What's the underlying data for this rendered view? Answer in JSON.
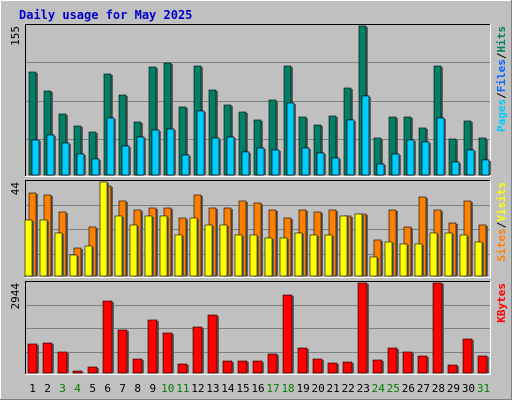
{
  "chart_data": {
    "type": "bar",
    "title": "Daily usage for May 2025",
    "categories": [
      "1",
      "2",
      "3",
      "4",
      "5",
      "6",
      "7",
      "8",
      "9",
      "10",
      "11",
      "12",
      "13",
      "14",
      "15",
      "16",
      "17",
      "18",
      "19",
      "20",
      "21",
      "22",
      "23",
      "24",
      "25",
      "26",
      "27",
      "28",
      "29",
      "30",
      "31"
    ],
    "weekend_days": [
      "3",
      "4",
      "10",
      "11",
      "17",
      "18",
      "24",
      "25",
      "31"
    ],
    "panels": [
      {
        "name": "hits-files-pages",
        "max_label": "155",
        "ylim": [
          0,
          155
        ],
        "side_labels": [
          {
            "text": "Pages",
            "color": "#00ccff"
          },
          {
            "text": "/",
            "color": "#000000"
          },
          {
            "text": "Files",
            "color": "#0066ff"
          },
          {
            "text": "/",
            "color": "#000000"
          },
          {
            "text": "Hits",
            "color": "#008066"
          }
        ],
        "series": [
          {
            "name": "Hits",
            "color": "#008066",
            "values": [
              107,
              87,
              63,
              51,
              45,
              105,
              83,
              55,
              112,
              116,
              71,
              113,
              88,
              73,
              66,
              57,
              78,
              113,
              60,
              52,
              61,
              91,
              155,
              38,
              60,
              60,
              49,
              113,
              37,
              56,
              39
            ]
          },
          {
            "name": "Files",
            "color": "#0066ff",
            "values": [
              36,
              42,
              33,
              22,
              17,
              59,
              30,
              40,
              47,
              48,
              21,
              67,
              39,
              40,
              24,
              28,
              26,
              75,
              28,
              23,
              18,
              57,
              82,
              11,
              22,
              36,
              34,
              59,
              14,
              26,
              16
            ]
          },
          {
            "name": "Pages",
            "color": "#00ccff",
            "values": [
              36,
              42,
              33,
              22,
              17,
              59,
              30,
              40,
              47,
              48,
              21,
              67,
              39,
              40,
              24,
              28,
              26,
              75,
              28,
              23,
              18,
              57,
              82,
              11,
              22,
              36,
              34,
              59,
              14,
              26,
              16
            ]
          }
        ]
      },
      {
        "name": "visits-sites",
        "max_label": "44",
        "ylim": [
          0,
          44
        ],
        "side_labels": [
          {
            "text": "Sites",
            "color": "#ff8000"
          },
          {
            "text": "/",
            "color": "#000000"
          },
          {
            "text": "Visits",
            "color": "#ffff00"
          }
        ],
        "series": [
          {
            "name": "Visits",
            "color": "#ff8000",
            "values": [
              39,
              38,
              30,
              13,
              23,
              42,
              35,
              31,
              32,
              32,
              27,
              38,
              32,
              32,
              35,
              34,
              31,
              27,
              31,
              30,
              31,
              28,
              29,
              17,
              31,
              23,
              37,
              31,
              25,
              35,
              24
            ]
          },
          {
            "name": "Sites",
            "color": "#ffff00",
            "values": [
              26,
              26,
              20,
              10,
              14,
              44,
              28,
              24,
              28,
              28,
              19,
              27,
              24,
              24,
              19,
              19,
              18,
              18,
              20,
              19,
              19,
              28,
              29,
              9,
              16,
              15,
              15,
              20,
              20,
              19,
              16
            ]
          }
        ]
      },
      {
        "name": "kbytes",
        "max_label": "2944",
        "ylim": [
          0,
          2944
        ],
        "side_labels": [
          {
            "text": "KBytes",
            "color": "#ff0000"
          }
        ],
        "series": [
          {
            "name": "KBytes",
            "color": "#ff0000",
            "values": [
              960,
              990,
              680,
              80,
              180,
              2350,
              1400,
              470,
              1750,
              1310,
              300,
              1500,
              1900,
              400,
              390,
              380,
              610,
              2540,
              830,
              450,
              340,
              350,
              2944,
              420,
              820,
              680,
              560,
              2944,
              260,
              1120,
              570
            ]
          }
        ]
      }
    ]
  }
}
